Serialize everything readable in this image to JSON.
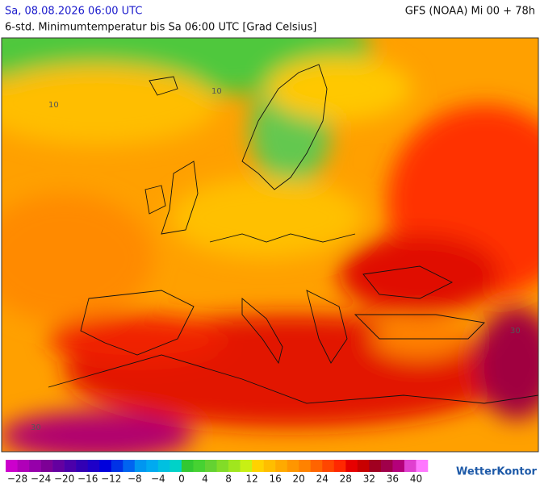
{
  "header": {
    "valid_time": "Sa, 08.08.2026 06:00 UTC",
    "model": "GFS (NOAA) Mi 00 + 78h",
    "subtitle": "6-std. Minimumtemperatur bis Sa 06:00 UTC [Grad Celsius]"
  },
  "map": {
    "contour_labels": [
      "10",
      "10",
      "30",
      "30"
    ]
  },
  "legend": {
    "colors": [
      "#cc00cc",
      "#b000b8",
      "#9600aa",
      "#7d0096",
      "#6400a0",
      "#4b00aa",
      "#3200b4",
      "#1e00c8",
      "#0000dc",
      "#0032e6",
      "#0064f0",
      "#0096f0",
      "#00aaf0",
      "#00c0e0",
      "#00d2c8",
      "#32c832",
      "#46d232",
      "#64d232",
      "#82dc28",
      "#a0e61e",
      "#c8f014",
      "#ffd200",
      "#ffbe00",
      "#ffaa00",
      "#ff9600",
      "#ff8200",
      "#ff6400",
      "#ff4600",
      "#ff2800",
      "#e60000",
      "#c80000",
      "#a00020",
      "#a0004a",
      "#b4007a",
      "#e040d0",
      "#ff78ff"
    ],
    "scale_labels": [
      "−28",
      "−24",
      "−20",
      "−16",
      "−12",
      "−8",
      "−4",
      "0",
      "4",
      "8",
      "12",
      "16",
      "20",
      "24",
      "28",
      "32",
      "36",
      "40"
    ]
  },
  "logo": "WetterKontor"
}
